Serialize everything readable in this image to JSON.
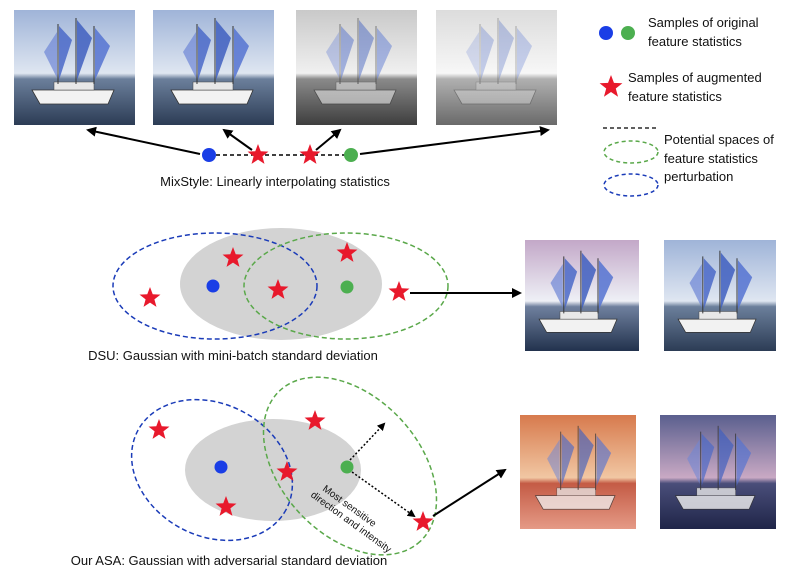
{
  "legend": {
    "original_label_line1": "Samples of original",
    "original_label_line2": "feature statistics",
    "augmented_label_line1": "Samples of augmented",
    "augmented_label_line2": "feature statistics",
    "spaces_label_line1": "Potential spaces of",
    "spaces_label_line2": "feature statistics",
    "spaces_label_line3": "perturbation"
  },
  "captions": {
    "mixstyle": "MixStyle: Linearly interpolating statistics",
    "dsu": "DSU: Gaussian with mini-batch standard deviation",
    "asa": "Our ASA: Gaussian with adversarial standard deviation"
  },
  "annotation": {
    "line1": "Most sensitive",
    "line2": "direction and intensity"
  },
  "colors": {
    "original_blue": "#1a3ee6",
    "original_green": "#4caf50",
    "star_red": "#e8192c",
    "ellipse_blue": "#1a3bb8",
    "ellipse_green": "#5aa84a",
    "gaussian_gray": "#d3d3d3"
  }
}
